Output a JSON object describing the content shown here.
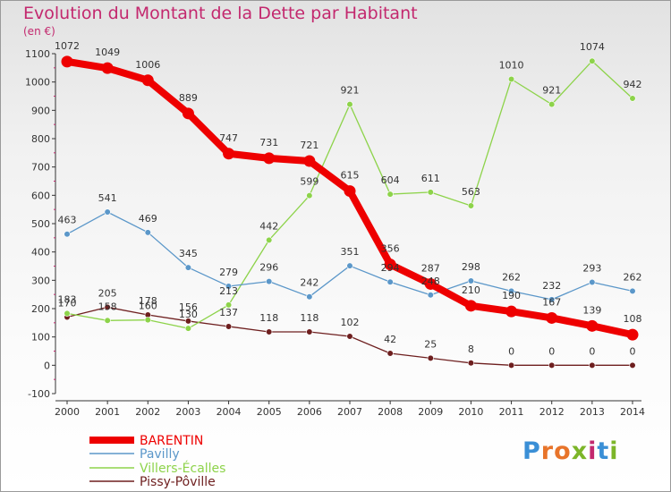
{
  "title": "Evolution du Montant de la Dette par Habitant",
  "subtitle": "(en €)",
  "logo": {
    "text": "Proxiti",
    "letters": [
      "P",
      "r",
      "o",
      "x",
      "i",
      "t",
      "i"
    ],
    "colors": [
      "#3a8fd6",
      "#e8742a",
      "#e8742a",
      "#7cb529",
      "#c3286e",
      "#3a8fd6",
      "#7cb529"
    ]
  },
  "chart_data": {
    "type": "line",
    "title": "Evolution du Montant de la Dette par Habitant",
    "subtitle": "(en €)",
    "xlabel": "",
    "ylabel": "",
    "x": [
      2000,
      2001,
      2002,
      2003,
      2004,
      2005,
      2006,
      2007,
      2008,
      2009,
      2010,
      2011,
      2012,
      2013,
      2014
    ],
    "ylim": [
      -100,
      1100
    ],
    "yticks": [
      -100,
      0,
      100,
      200,
      300,
      400,
      500,
      600,
      700,
      800,
      900,
      1000,
      1100
    ],
    "grid": false,
    "legend_position": "bottom-left",
    "series": [
      {
        "name": "BARENTIN",
        "color": "#ee0000",
        "values": [
          1072,
          1049,
          1006,
          889,
          747,
          731,
          721,
          615,
          356,
          287,
          210,
          190,
          167,
          139,
          108
        ],
        "labels": [
          "1072",
          "1049",
          "1006",
          "889",
          "747",
          "731",
          "721",
          "615",
          "356",
          "287",
          "210",
          "190",
          "167",
          "139",
          "108"
        ]
      },
      {
        "name": "Pavilly",
        "color": "#5b97c9",
        "values": [
          463,
          541,
          469,
          345,
          279,
          296,
          242,
          351,
          294,
          248,
          298,
          262,
          232,
          293,
          262
        ],
        "labels": [
          "463",
          "541",
          "469",
          "345",
          "279",
          "296",
          "242",
          "351",
          "294",
          "248",
          "298",
          "262",
          "232",
          "293",
          "262"
        ]
      },
      {
        "name": "Villers-Écalles",
        "color": "#8dd34a",
        "values": [
          183,
          158,
          160,
          130,
          213,
          442,
          599,
          921,
          604,
          611,
          563,
          1010,
          921,
          1074,
          942
        ],
        "labels": [
          "183",
          "158",
          "160",
          "130",
          "213",
          "442",
          "599",
          "921",
          "604",
          "611",
          "563",
          "1010",
          "921",
          "1074",
          "942"
        ]
      },
      {
        "name": "Pissy-Pôville",
        "color": "#6e1f1f",
        "values": [
          170,
          205,
          178,
          156,
          137,
          118,
          118,
          102,
          42,
          25,
          8,
          0,
          0,
          0,
          0
        ],
        "labels": [
          "170",
          "205",
          "178",
          "156",
          "137",
          "118",
          "118",
          "102",
          "42",
          "25",
          "8",
          "0",
          "0",
          "0",
          "0"
        ]
      }
    ]
  }
}
